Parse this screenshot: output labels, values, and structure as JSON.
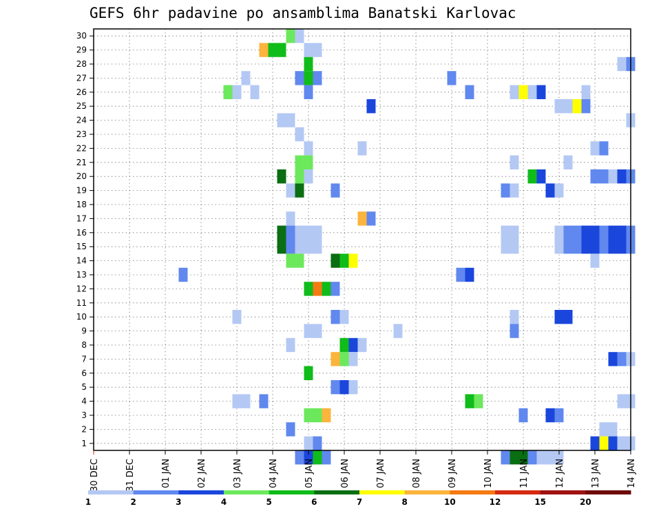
{
  "chart_data": {
    "type": "heatmap",
    "title": "GEFS 6hr padavine po ansamblima Banatski Karlovac",
    "x_tick_labels": [
      "30 DEC",
      "31 DEC",
      "01 JAN",
      "02 JAN",
      "03 JAN",
      "04 JAN",
      "05 JAN",
      "06 JAN",
      "07 JAN",
      "08 JAN",
      "09 JAN",
      "10 JAN",
      "11 JAN",
      "12 JAN",
      "13 JAN",
      "14 JAN"
    ],
    "y_tick_labels": [
      "1",
      "2",
      "3",
      "4",
      "5",
      "6",
      "7",
      "8",
      "9",
      "10",
      "11",
      "12",
      "13",
      "14",
      "15",
      "16",
      "17",
      "18",
      "19",
      "20",
      "21",
      "22",
      "23",
      "24",
      "25",
      "26",
      "27",
      "28",
      "29",
      "30"
    ],
    "x_range_days": [
      0,
      15
    ],
    "y_range": [
      0,
      30
    ],
    "grid": true,
    "grid_style": "dotted",
    "time_step_hours": 6,
    "color_levels": [
      1,
      2,
      3,
      4,
      5,
      6,
      7,
      8,
      10,
      12,
      15,
      20
    ],
    "color_bins": [
      "#b4c8f4",
      "#6088ee",
      "#1a46dc",
      "#6ce85c",
      "#10bc1a",
      "#0a6e12",
      "#ffff00",
      "#fbb43c",
      "#f47a12",
      "#d42a12",
      "#a01212",
      "#6e0a0a"
    ],
    "legend_labels": [
      "1",
      "2",
      "3",
      "4",
      "5",
      "6",
      "7",
      "8",
      "10",
      "12",
      "15",
      "20"
    ],
    "legend_position": "bottom",
    "cells": [
      [
        5.75,
        30,
        0
      ],
      [
        5.5,
        30,
        3
      ],
      [
        4.75,
        29,
        7
      ],
      [
        5.0,
        29,
        4
      ],
      [
        5.25,
        29,
        4
      ],
      [
        6.0,
        29,
        0
      ],
      [
        6.25,
        29,
        0
      ],
      [
        6.0,
        28,
        4
      ],
      [
        14.75,
        28,
        0
      ],
      [
        15.0,
        28,
        1
      ],
      [
        5.75,
        27,
        1
      ],
      [
        6.0,
        27,
        4
      ],
      [
        6.25,
        27,
        1
      ],
      [
        10.0,
        27,
        1
      ],
      [
        4.25,
        27,
        0
      ],
      [
        3.75,
        26,
        3
      ],
      [
        4.0,
        26,
        0
      ],
      [
        4.5,
        26,
        0
      ],
      [
        6.0,
        26,
        1
      ],
      [
        11.75,
        26,
        0
      ],
      [
        12.0,
        26,
        6
      ],
      [
        12.25,
        26,
        0
      ],
      [
        12.5,
        26,
        2
      ],
      [
        10.5,
        26,
        1
      ],
      [
        13.75,
        26,
        0
      ],
      [
        7.75,
        25,
        2
      ],
      [
        13.0,
        25,
        0
      ],
      [
        13.25,
        25,
        0
      ],
      [
        13.5,
        25,
        6
      ],
      [
        13.75,
        25,
        1
      ],
      [
        5.25,
        24,
        0
      ],
      [
        5.5,
        24,
        0
      ],
      [
        15.0,
        24,
        0
      ],
      [
        5.75,
        23,
        0
      ],
      [
        6.0,
        22,
        0
      ],
      [
        7.5,
        22,
        0
      ],
      [
        14.0,
        22,
        0
      ],
      [
        14.25,
        22,
        1
      ],
      [
        5.75,
        21,
        3
      ],
      [
        6.0,
        21,
        3
      ],
      [
        11.75,
        21,
        0
      ],
      [
        13.25,
        21,
        0
      ],
      [
        5.25,
        20,
        5
      ],
      [
        5.75,
        20,
        3
      ],
      [
        6.0,
        20,
        0
      ],
      [
        12.25,
        20,
        4
      ],
      [
        12.5,
        20,
        2
      ],
      [
        14.0,
        20,
        1
      ],
      [
        14.25,
        20,
        1
      ],
      [
        14.5,
        20,
        0
      ],
      [
        14.75,
        20,
        2
      ],
      [
        15.0,
        20,
        1
      ],
      [
        5.5,
        19,
        0
      ],
      [
        5.75,
        19,
        5
      ],
      [
        6.75,
        19,
        1
      ],
      [
        11.5,
        19,
        1
      ],
      [
        11.75,
        19,
        0
      ],
      [
        12.75,
        19,
        2
      ],
      [
        13.0,
        19,
        0
      ],
      [
        5.5,
        17,
        0
      ],
      [
        7.5,
        17,
        7
      ],
      [
        7.75,
        17,
        1
      ],
      [
        5.25,
        16,
        5
      ],
      [
        5.5,
        16,
        1
      ],
      [
        5.75,
        16,
        0
      ],
      [
        6.0,
        16,
        0
      ],
      [
        6.25,
        16,
        0
      ],
      [
        11.5,
        16,
        0
      ],
      [
        11.75,
        16,
        0
      ],
      [
        13.0,
        16,
        0
      ],
      [
        13.25,
        16,
        1
      ],
      [
        13.5,
        16,
        1
      ],
      [
        13.75,
        16,
        2
      ],
      [
        14.0,
        16,
        2
      ],
      [
        14.25,
        16,
        1
      ],
      [
        14.5,
        16,
        2
      ],
      [
        14.75,
        16,
        2
      ],
      [
        15.0,
        16,
        1
      ],
      [
        5.25,
        15,
        5
      ],
      [
        5.5,
        15,
        1
      ],
      [
        5.75,
        15,
        0
      ],
      [
        6.0,
        15,
        0
      ],
      [
        6.25,
        15,
        0
      ],
      [
        11.5,
        15,
        0
      ],
      [
        11.75,
        15,
        0
      ],
      [
        13.0,
        15,
        0
      ],
      [
        13.25,
        15,
        1
      ],
      [
        13.5,
        15,
        1
      ],
      [
        13.75,
        15,
        2
      ],
      [
        14.0,
        15,
        2
      ],
      [
        14.25,
        15,
        1
      ],
      [
        14.5,
        15,
        2
      ],
      [
        14.75,
        15,
        2
      ],
      [
        15.0,
        15,
        1
      ],
      [
        5.5,
        14,
        3
      ],
      [
        5.75,
        14,
        3
      ],
      [
        6.75,
        14,
        5
      ],
      [
        7.0,
        14,
        4
      ],
      [
        7.25,
        14,
        6
      ],
      [
        14.0,
        14,
        0
      ],
      [
        2.5,
        13,
        1
      ],
      [
        10.25,
        13,
        1
      ],
      [
        10.5,
        13,
        2
      ],
      [
        6.0,
        12,
        4
      ],
      [
        6.25,
        12,
        8
      ],
      [
        6.5,
        12,
        4
      ],
      [
        6.75,
        12,
        1
      ],
      [
        4.0,
        10,
        0
      ],
      [
        6.75,
        10,
        1
      ],
      [
        7.0,
        10,
        0
      ],
      [
        11.75,
        10,
        0
      ],
      [
        13.0,
        10,
        2
      ],
      [
        13.25,
        10,
        2
      ],
      [
        6.0,
        9,
        0
      ],
      [
        6.25,
        9,
        0
      ],
      [
        8.5,
        9,
        0
      ],
      [
        11.75,
        9,
        1
      ],
      [
        5.5,
        8,
        0
      ],
      [
        7.0,
        8,
        4
      ],
      [
        7.25,
        8,
        2
      ],
      [
        7.5,
        8,
        0
      ],
      [
        6.75,
        7,
        7
      ],
      [
        7.0,
        7,
        3
      ],
      [
        7.25,
        7,
        0
      ],
      [
        14.5,
        7,
        2
      ],
      [
        14.75,
        7,
        1
      ],
      [
        15.0,
        7,
        0
      ],
      [
        6.0,
        6,
        4
      ],
      [
        6.75,
        5,
        1
      ],
      [
        7.0,
        5,
        2
      ],
      [
        7.25,
        5,
        0
      ],
      [
        4.0,
        4,
        0
      ],
      [
        4.25,
        4,
        0
      ],
      [
        4.75,
        4,
        1
      ],
      [
        10.5,
        4,
        4
      ],
      [
        10.75,
        4,
        3
      ],
      [
        14.75,
        4,
        0
      ],
      [
        15.0,
        4,
        0
      ],
      [
        6.0,
        3,
        3
      ],
      [
        6.25,
        3,
        3
      ],
      [
        6.5,
        3,
        7
      ],
      [
        12.0,
        3,
        1
      ],
      [
        12.75,
        3,
        2
      ],
      [
        13.0,
        3,
        1
      ],
      [
        5.5,
        2,
        1
      ],
      [
        14.25,
        2,
        0
      ],
      [
        14.5,
        2,
        0
      ],
      [
        6.0,
        1,
        0
      ],
      [
        6.25,
        1,
        1
      ],
      [
        14.0,
        1,
        2
      ],
      [
        14.25,
        1,
        6
      ],
      [
        14.5,
        1,
        2
      ],
      [
        14.75,
        1,
        0
      ],
      [
        15.0,
        1,
        0
      ],
      [
        5.75,
        0,
        1
      ],
      [
        6.0,
        0,
        2
      ],
      [
        6.25,
        0,
        4
      ],
      [
        6.5,
        0,
        1
      ],
      [
        11.5,
        0,
        1
      ],
      [
        11.75,
        0,
        5
      ],
      [
        12.0,
        0,
        5
      ],
      [
        12.25,
        0,
        1
      ],
      [
        12.5,
        0,
        0
      ],
      [
        12.75,
        0,
        0
      ],
      [
        13.0,
        0,
        0
      ]
    ]
  }
}
